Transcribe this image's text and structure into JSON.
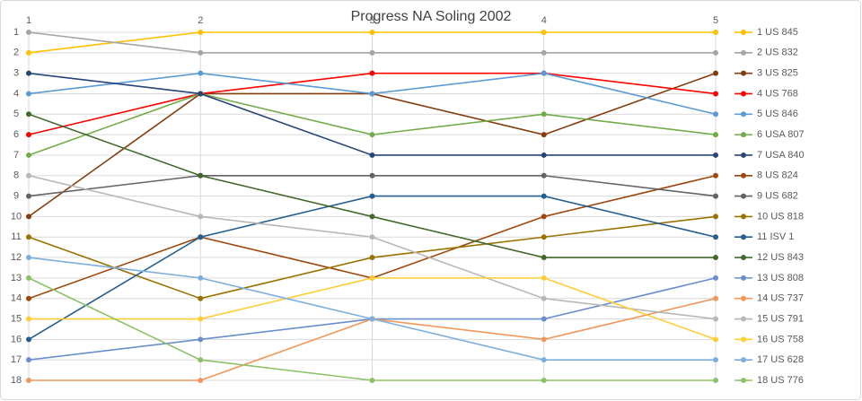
{
  "chart_data": {
    "type": "line",
    "title": "Progress NA Soling 2002",
    "categories": [
      "1",
      "2",
      "3",
      "4",
      "5"
    ],
    "ylim": [
      1,
      18
    ],
    "y_reversed": true,
    "yticks": [
      1,
      2,
      3,
      4,
      5,
      6,
      7,
      8,
      9,
      10,
      11,
      12,
      13,
      14,
      15,
      16,
      17,
      18
    ],
    "grid": true,
    "legend": "right",
    "series": [
      {
        "name": "1 US 845",
        "color": "#ffc000",
        "values": [
          2,
          1,
          1,
          1,
          1
        ]
      },
      {
        "name": "2 US 832",
        "color": "#a5a5a5",
        "values": [
          1,
          2,
          2,
          2,
          2
        ]
      },
      {
        "name": "3 US 825",
        "color": "#843c0c",
        "values": [
          10,
          4,
          4,
          6,
          3
        ]
      },
      {
        "name": "4 US 768",
        "color": "#ff0000",
        "values": [
          6,
          4,
          3,
          3,
          4
        ]
      },
      {
        "name": "5 US 846",
        "color": "#5b9bd5",
        "values": [
          4,
          3,
          4,
          3,
          5
        ]
      },
      {
        "name": "6 USA 807",
        "color": "#70ad47",
        "values": [
          7,
          4,
          6,
          5,
          6
        ]
      },
      {
        "name": "7 USA 840",
        "color": "#264478",
        "values": [
          3,
          4,
          7,
          7,
          7
        ]
      },
      {
        "name": "8 US 824",
        "color": "#9e480e",
        "values": [
          14,
          11,
          13,
          10,
          8
        ]
      },
      {
        "name": "9 US 682",
        "color": "#636363",
        "values": [
          9,
          8,
          8,
          8,
          9
        ]
      },
      {
        "name": "10 US 818",
        "color": "#997300",
        "values": [
          11,
          14,
          12,
          11,
          10
        ]
      },
      {
        "name": "11 ISV 1",
        "color": "#255e91",
        "values": [
          16,
          11,
          9,
          9,
          11
        ]
      },
      {
        "name": "12 US 843",
        "color": "#43682b",
        "values": [
          5,
          8,
          10,
          12,
          12
        ]
      },
      {
        "name": "13 US 808",
        "color": "#698ed0",
        "values": [
          17,
          16,
          15,
          15,
          13
        ]
      },
      {
        "name": "14 US 737",
        "color": "#f1975a",
        "values": [
          18,
          18,
          15,
          16,
          14
        ]
      },
      {
        "name": "15 US 791",
        "color": "#b7b7b7",
        "values": [
          8,
          10,
          11,
          14,
          15
        ]
      },
      {
        "name": "16 US 758",
        "color": "#ffcd33",
        "values": [
          15,
          15,
          13,
          13,
          16
        ]
      },
      {
        "name": "17 US 628",
        "color": "#7cafdd",
        "values": [
          12,
          13,
          15,
          17,
          17
        ]
      },
      {
        "name": "18 US 776",
        "color": "#8cc168",
        "values": [
          13,
          17,
          18,
          18,
          18
        ]
      }
    ]
  }
}
